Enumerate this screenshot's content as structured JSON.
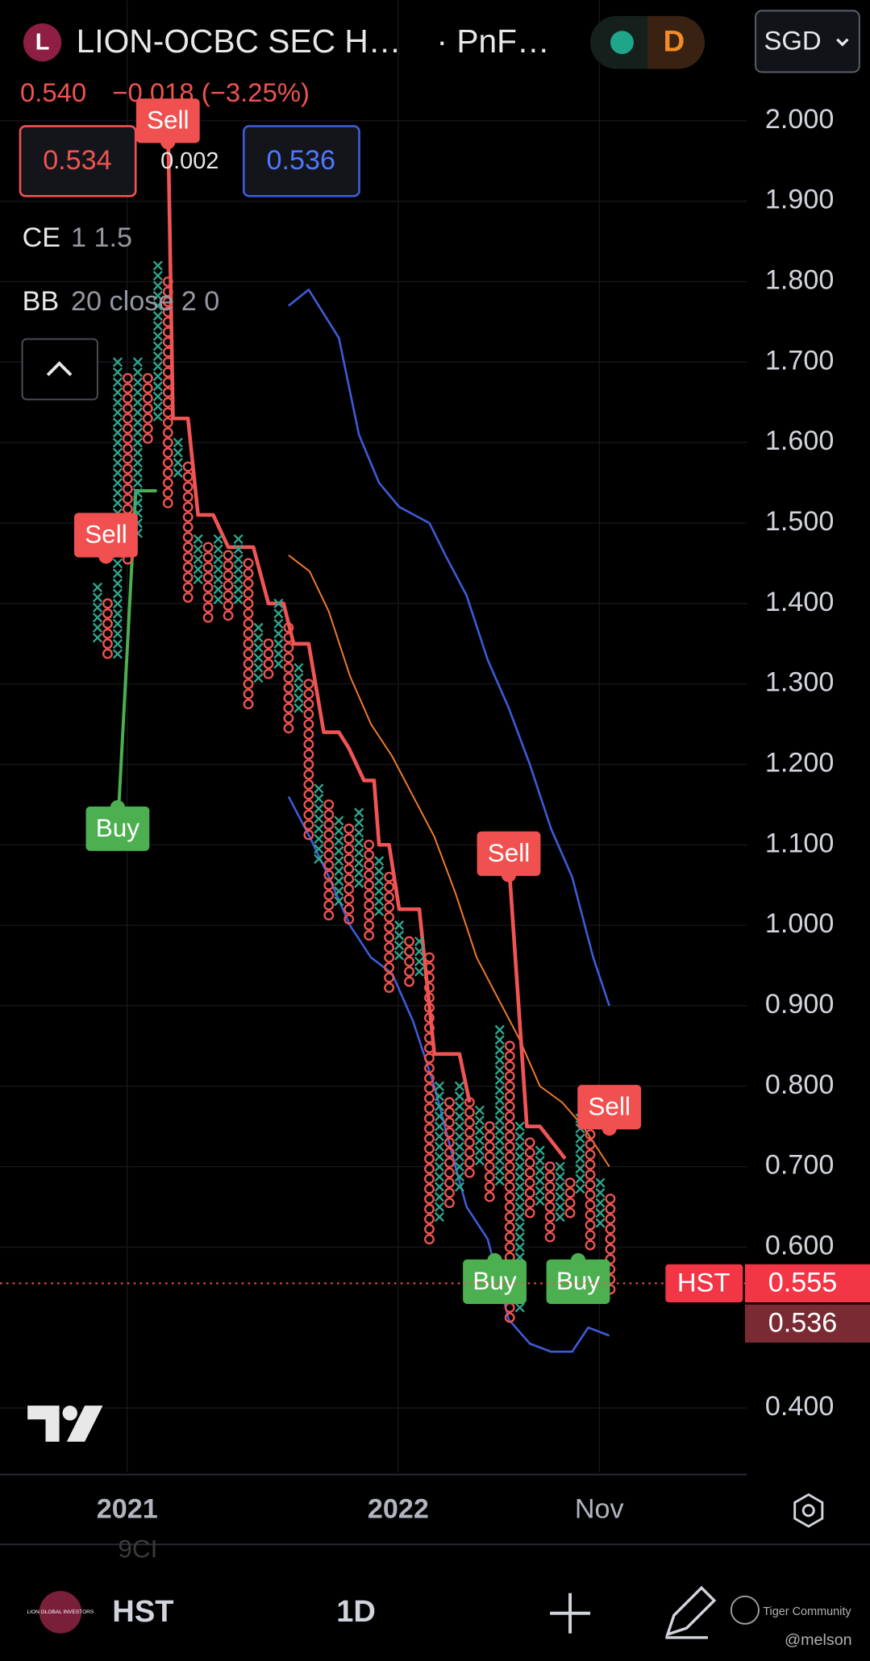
{
  "header": {
    "symbol_initial": "L",
    "title": "LION-OCBC SEC H…",
    "chart_type": "· PnF…",
    "interval": "D",
    "currency": "SGD",
    "price": "0.540",
    "change": "−0.018 (−3.25%)",
    "bid": "0.534",
    "spread": "0.002",
    "ask": "0.536",
    "indicators": [
      {
        "name": "CE",
        "params": "1 1.5"
      },
      {
        "name": "BB",
        "params": "20 close 2 0"
      }
    ]
  },
  "footer": {
    "logo_text": "LION GLOBAL INVESTORS",
    "symbol": "HST",
    "interval": "1D",
    "watermark": "Tiger Community",
    "user": "@melson",
    "faded": "9CI"
  },
  "chart_data": {
    "type": "pnf",
    "x_color": "#2fa58c",
    "o_color": "#ef5350",
    "columns": [
      {
        "kind": "X",
        "high": 1.42,
        "low": 1.35
      },
      {
        "kind": "O",
        "high": 1.4,
        "low": 1.33
      },
      {
        "kind": "X",
        "high": 1.7,
        "low": 1.33
      },
      {
        "kind": "O",
        "high": 1.68,
        "low": 1.45
      },
      {
        "kind": "X",
        "high": 1.7,
        "low": 1.48
      },
      {
        "kind": "O",
        "high": 1.68,
        "low": 1.6
      },
      {
        "kind": "X",
        "high": 1.82,
        "low": 1.62
      },
      {
        "kind": "O",
        "high": 1.8,
        "low": 1.52
      },
      {
        "kind": "X",
        "high": 1.6,
        "low": 1.55
      },
      {
        "kind": "O",
        "high": 1.57,
        "low": 1.4
      },
      {
        "kind": "X",
        "high": 1.48,
        "low": 1.42
      },
      {
        "kind": "O",
        "high": 1.47,
        "low": 1.38
      },
      {
        "kind": "X",
        "high": 1.48,
        "low": 1.4
      },
      {
        "kind": "O",
        "high": 1.46,
        "low": 1.38
      },
      {
        "kind": "X",
        "high": 1.48,
        "low": 1.4
      },
      {
        "kind": "O",
        "high": 1.45,
        "low": 1.27
      },
      {
        "kind": "X",
        "high": 1.37,
        "low": 1.3
      },
      {
        "kind": "O",
        "high": 1.35,
        "low": 1.3
      },
      {
        "kind": "X",
        "high": 1.4,
        "low": 1.32
      },
      {
        "kind": "O",
        "high": 1.37,
        "low": 1.24
      },
      {
        "kind": "X",
        "high": 1.32,
        "low": 1.26
      },
      {
        "kind": "O",
        "high": 1.3,
        "low": 1.11
      },
      {
        "kind": "X",
        "high": 1.17,
        "low": 1.08
      },
      {
        "kind": "O",
        "high": 1.15,
        "low": 1.0
      },
      {
        "kind": "X",
        "high": 1.13,
        "low": 1.02
      },
      {
        "kind": "O",
        "high": 1.12,
        "low": 1.0
      },
      {
        "kind": "X",
        "high": 1.14,
        "low": 1.05
      },
      {
        "kind": "O",
        "high": 1.1,
        "low": 0.98
      },
      {
        "kind": "X",
        "high": 1.08,
        "low": 1.01
      },
      {
        "kind": "O",
        "high": 1.06,
        "low": 0.92
      },
      {
        "kind": "X",
        "high": 1.0,
        "low": 0.95
      },
      {
        "kind": "O",
        "high": 0.98,
        "low": 0.92
      },
      {
        "kind": "X",
        "high": 0.98,
        "low": 0.94
      },
      {
        "kind": "O",
        "high": 0.96,
        "low": 0.6
      },
      {
        "kind": "X",
        "high": 0.8,
        "low": 0.63
      },
      {
        "kind": "O",
        "high": 0.78,
        "low": 0.65
      },
      {
        "kind": "X",
        "high": 0.8,
        "low": 0.67
      },
      {
        "kind": "O",
        "high": 0.78,
        "low": 0.68
      },
      {
        "kind": "X",
        "high": 0.77,
        "low": 0.7
      },
      {
        "kind": "O",
        "high": 0.75,
        "low": 0.65
      },
      {
        "kind": "X",
        "high": 0.87,
        "low": 0.67
      },
      {
        "kind": "O",
        "high": 0.85,
        "low": 0.5
      },
      {
        "kind": "X",
        "high": 0.75,
        "low": 0.52
      },
      {
        "kind": "O",
        "high": 0.73,
        "low": 0.63
      },
      {
        "kind": "X",
        "high": 0.72,
        "low": 0.65
      },
      {
        "kind": "O",
        "high": 0.7,
        "low": 0.61
      },
      {
        "kind": "X",
        "high": 0.7,
        "low": 0.63
      },
      {
        "kind": "O",
        "high": 0.68,
        "low": 0.64
      },
      {
        "kind": "X",
        "high": 0.76,
        "low": 0.66
      },
      {
        "kind": "O",
        "high": 0.74,
        "low": 0.6
      },
      {
        "kind": "X",
        "high": 0.68,
        "low": 0.62
      },
      {
        "kind": "O",
        "high": 0.66,
        "low": 0.54
      }
    ],
    "lines": [
      {
        "color": "#3d5bd6",
        "width": 2,
        "x": [
          19,
          21,
          24,
          26,
          28,
          30,
          33,
          34.6,
          36.7,
          38.8,
          40.9,
          43,
          45.1,
          47.2,
          49.3,
          50.9
        ],
        "values": [
          1.77,
          1.79,
          1.73,
          1.61,
          1.55,
          1.52,
          1.5,
          1.46,
          1.41,
          1.33,
          1.27,
          1.2,
          1.12,
          1.06,
          0.96,
          0.9
        ]
      },
      {
        "color": "#3d5bd6",
        "width": 2,
        "x": [
          19,
          21.1,
          23,
          25.1,
          27.2,
          29.3,
          31.4,
          33.5,
          35.6,
          36.7,
          38.8,
          40.9,
          43,
          45.1,
          47.2,
          48.8,
          50.9
        ],
        "values": [
          1.16,
          1.11,
          1.06,
          1.0,
          0.96,
          0.94,
          0.88,
          0.8,
          0.7,
          0.65,
          0.61,
          0.51,
          0.48,
          0.47,
          0.47,
          0.5,
          0.49
        ]
      },
      {
        "color": "#f07a2c",
        "width": 1.5,
        "x": [
          19,
          21.1,
          23,
          25.1,
          27.2,
          29.3,
          31.4,
          33.5,
          35.6,
          37.7,
          39.8,
          41.9,
          44,
          46.2,
          48.3,
          50.9
        ],
        "values": [
          1.46,
          1.44,
          1.39,
          1.31,
          1.25,
          1.21,
          1.16,
          1.11,
          1.04,
          0.96,
          0.91,
          0.86,
          0.8,
          0.78,
          0.75,
          0.7
        ]
      },
      {
        "color": "#f05454",
        "width": 3.5,
        "x": [
          7,
          7.5,
          9,
          10,
          11.5,
          13,
          15.5,
          17,
          18.5,
          19.5,
          21,
          22.5,
          24,
          25,
          26.5,
          27.5,
          28,
          29,
          30,
          32,
          33.5,
          36,
          37,
          39,
          41,
          42.7,
          44,
          46.5
        ],
        "values": [
          2.0,
          1.63,
          1.63,
          1.51,
          1.51,
          1.47,
          1.47,
          1.4,
          1.4,
          1.35,
          1.35,
          1.24,
          1.24,
          1.22,
          1.18,
          1.18,
          1.1,
          1.1,
          1.02,
          1.02,
          0.84,
          0.84,
          0.78,
          null,
          1.06,
          0.75,
          0.75,
          0.71
        ]
      },
      {
        "color": "#4caf50",
        "width": 3,
        "x": [
          2,
          3.8,
          5.9
        ],
        "values": [
          1.12,
          1.54,
          1.54
        ]
      }
    ],
    "signals": [
      {
        "label": "Sell",
        "x": 0.84,
        "y": 1.485
      },
      {
        "label": "Buy",
        "x": 2,
        "y": 1.12
      },
      {
        "label": "Sell",
        "x": 7,
        "y": 2.0
      },
      {
        "label": "Sell",
        "x": 40.9,
        "y": 1.089
      },
      {
        "label": "Sell",
        "x": 50.9,
        "y": 0.774
      },
      {
        "label": "Buy",
        "x": 39.5,
        "y": 0.557
      },
      {
        "label": "Buy",
        "x": 47.8,
        "y": 0.557
      }
    ],
    "xlim": [
      -9.7,
      64.6
    ],
    "ylim": [
      0.32,
      2.15
    ],
    "xticks": [
      {
        "value": 2.95,
        "label": "2021"
      },
      {
        "value": 29.9,
        "label": "2022"
      },
      {
        "value": 49.9,
        "label": "Nov"
      }
    ],
    "yticks": [
      {
        "value": 0.4,
        "label": "0.400"
      },
      {
        "value": 0.6,
        "label": "0.600"
      },
      {
        "value": 0.7,
        "label": "0.700"
      },
      {
        "value": 0.8,
        "label": "0.800"
      },
      {
        "value": 0.9,
        "label": "0.900"
      },
      {
        "value": 1,
        "label": "1.000"
      },
      {
        "value": 1.1,
        "label": "1.100"
      },
      {
        "value": 1.2,
        "label": "1.200"
      },
      {
        "value": 1.3,
        "label": "1.300"
      },
      {
        "value": 1.4,
        "label": "1.400"
      },
      {
        "value": 1.5,
        "label": "1.500"
      },
      {
        "value": 1.6,
        "label": "1.600"
      },
      {
        "value": 1.7,
        "label": "1.700"
      },
      {
        "value": 1.8,
        "label": "1.800"
      },
      {
        "value": 1.9,
        "label": "1.900"
      },
      {
        "value": 2,
        "label": "2.000"
      }
    ],
    "grid": true,
    "last_price": {
      "label": "HST",
      "value": 0.555
    },
    "stop_price": 0.536
  }
}
